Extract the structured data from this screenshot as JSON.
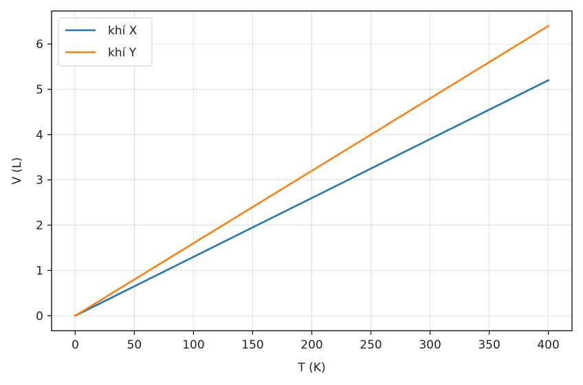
{
  "chart_data": {
    "type": "line",
    "xlabel": "T (K)",
    "ylabel": "V (L)",
    "xlim": [
      -20,
      420
    ],
    "ylim": [
      -0.33,
      6.73
    ],
    "xticks": [
      0,
      50,
      100,
      150,
      200,
      250,
      300,
      350,
      400
    ],
    "yticks": [
      0,
      1,
      2,
      3,
      4,
      5,
      6
    ],
    "grid": true,
    "legend_position": "top-left",
    "series": [
      {
        "name": "khí X",
        "color": "#1f77b4",
        "x": [
          0,
          400
        ],
        "y": [
          0,
          5.2
        ]
      },
      {
        "name": "khí Y",
        "color": "#ff7f0e",
        "x": [
          0,
          400
        ],
        "y": [
          0,
          6.4
        ]
      }
    ]
  }
}
